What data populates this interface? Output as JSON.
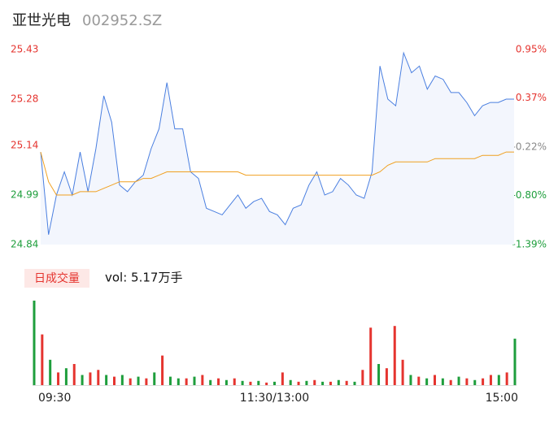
{
  "header": {
    "name": "亚世光电",
    "code": "002952.SZ"
  },
  "chart_data": [
    {
      "type": "line",
      "x": [
        0,
        4,
        8,
        12,
        16,
        20,
        24,
        28,
        32,
        36,
        40,
        44,
        48,
        52,
        56,
        60,
        64,
        68,
        72,
        76,
        80,
        84,
        88,
        92,
        96,
        100,
        104,
        108,
        112,
        116,
        120,
        124,
        128,
        132,
        136,
        140,
        144,
        148,
        152,
        156,
        160,
        164,
        168,
        172,
        176,
        180,
        184,
        188,
        192,
        196,
        200,
        204,
        208,
        212,
        216,
        220,
        224,
        228,
        232,
        236,
        240
      ],
      "series": [
        {
          "color": "#4a7fe0",
          "values": [
            25.12,
            24.87,
            24.99,
            25.06,
            24.99,
            25.12,
            25.0,
            25.13,
            25.29,
            25.21,
            25.02,
            25.0,
            25.03,
            25.05,
            25.13,
            25.19,
            25.33,
            25.19,
            25.19,
            25.06,
            25.04,
            24.95,
            24.94,
            24.93,
            24.96,
            24.99,
            24.95,
            24.97,
            24.98,
            24.94,
            24.93,
            24.9,
            24.95,
            24.96,
            25.02,
            25.06,
            24.99,
            25.0,
            25.04,
            25.02,
            24.99,
            24.98,
            25.06,
            25.38,
            25.28,
            25.26,
            25.42,
            25.36,
            25.38,
            25.31,
            25.35,
            25.34,
            25.3,
            25.3,
            25.27,
            25.23,
            25.26,
            25.27,
            25.27,
            25.28,
            25.28
          ]
        },
        {
          "color": "#f0a020",
          "values": [
            25.12,
            25.03,
            24.99,
            24.99,
            24.99,
            25.0,
            25.0,
            25.0,
            25.01,
            25.02,
            25.03,
            25.03,
            25.03,
            25.04,
            25.04,
            25.05,
            25.06,
            25.06,
            25.06,
            25.06,
            25.06,
            25.06,
            25.06,
            25.06,
            25.06,
            25.06,
            25.05,
            25.05,
            25.05,
            25.05,
            25.05,
            25.05,
            25.05,
            25.05,
            25.05,
            25.05,
            25.05,
            25.05,
            25.05,
            25.05,
            25.05,
            25.05,
            25.05,
            25.06,
            25.08,
            25.09,
            25.09,
            25.09,
            25.09,
            25.09,
            25.1,
            25.1,
            25.1,
            25.1,
            25.1,
            25.1,
            25.11,
            25.11,
            25.11,
            25.12,
            25.12
          ]
        }
      ],
      "ylim": [
        24.84,
        25.43
      ],
      "yticks": [
        24.84,
        24.99,
        25.14,
        25.28,
        25.43
      ],
      "y2lim": [
        -1.39,
        0.95
      ],
      "y2ticks": [
        {
          "value": -1.39,
          "label": "-1.39%"
        },
        {
          "value": -0.8,
          "label": "-0.80%"
        },
        {
          "value": -0.22,
          "label": "-0.22%"
        },
        {
          "value": 0.37,
          "label": "0.37%"
        },
        {
          "value": 0.95,
          "label": "0.95%"
        }
      ],
      "xlim": [
        0,
        240
      ]
    },
    {
      "type": "bar",
      "label": "日成交量",
      "summary": "vol: 5.17万手",
      "x": [
        0,
        4,
        8,
        12,
        16,
        20,
        24,
        28,
        32,
        36,
        40,
        44,
        48,
        52,
        56,
        60,
        64,
        68,
        72,
        76,
        80,
        84,
        88,
        92,
        96,
        100,
        104,
        108,
        112,
        116,
        120,
        124,
        128,
        132,
        136,
        140,
        144,
        148,
        152,
        156,
        160,
        164,
        168,
        172,
        176,
        180,
        184,
        188,
        192,
        196,
        200,
        204,
        208,
        212,
        216,
        220,
        224,
        228,
        232,
        236,
        240
      ],
      "values": [
        100,
        60,
        30,
        15,
        20,
        25,
        12,
        15,
        18,
        12,
        10,
        12,
        8,
        10,
        8,
        15,
        35,
        10,
        8,
        8,
        10,
        12,
        6,
        8,
        6,
        8,
        5,
        4,
        5,
        3,
        4,
        15,
        6,
        4,
        5,
        6,
        4,
        4,
        6,
        5,
        4,
        18,
        68,
        25,
        20,
        70,
        30,
        12,
        10,
        8,
        12,
        8,
        6,
        10,
        8,
        6,
        8,
        12,
        12,
        15,
        55
      ],
      "colors": [
        "#1e9e3c",
        "#e5342f",
        "#1e9e3c",
        "#e5342f",
        "#1e9e3c",
        "#e5342f",
        "#1e9e3c",
        "#e5342f",
        "#e5342f",
        "#1e9e3c",
        "#e5342f",
        "#1e9e3c",
        "#e5342f",
        "#1e9e3c",
        "#e5342f",
        "#1e9e3c",
        "#e5342f",
        "#1e9e3c",
        "#1e9e3c",
        "#e5342f",
        "#1e9e3c",
        "#e5342f",
        "#1e9e3c",
        "#e5342f",
        "#1e9e3c",
        "#e5342f",
        "#1e9e3c",
        "#e5342f",
        "#1e9e3c",
        "#e5342f",
        "#1e9e3c",
        "#e5342f",
        "#1e9e3c",
        "#e5342f",
        "#1e9e3c",
        "#e5342f",
        "#1e9e3c",
        "#e5342f",
        "#1e9e3c",
        "#e5342f",
        "#1e9e3c",
        "#e5342f",
        "#e5342f",
        "#1e9e3c",
        "#e5342f",
        "#e5342f",
        "#e5342f",
        "#1e9e3c",
        "#e5342f",
        "#1e9e3c",
        "#e5342f",
        "#1e9e3c",
        "#e5342f",
        "#1e9e3c",
        "#e5342f",
        "#1e9e3c",
        "#e5342f",
        "#e5342f",
        "#1e9e3c",
        "#e5342f",
        "#1e9e3c"
      ],
      "ylim": [
        0,
        100
      ],
      "xlim": [
        0,
        240
      ],
      "xticks": [
        {
          "value": 0,
          "label": "09:30"
        },
        {
          "value": 120,
          "label": "11:30/13:00"
        },
        {
          "value": 240,
          "label": "15:00"
        }
      ]
    }
  ]
}
